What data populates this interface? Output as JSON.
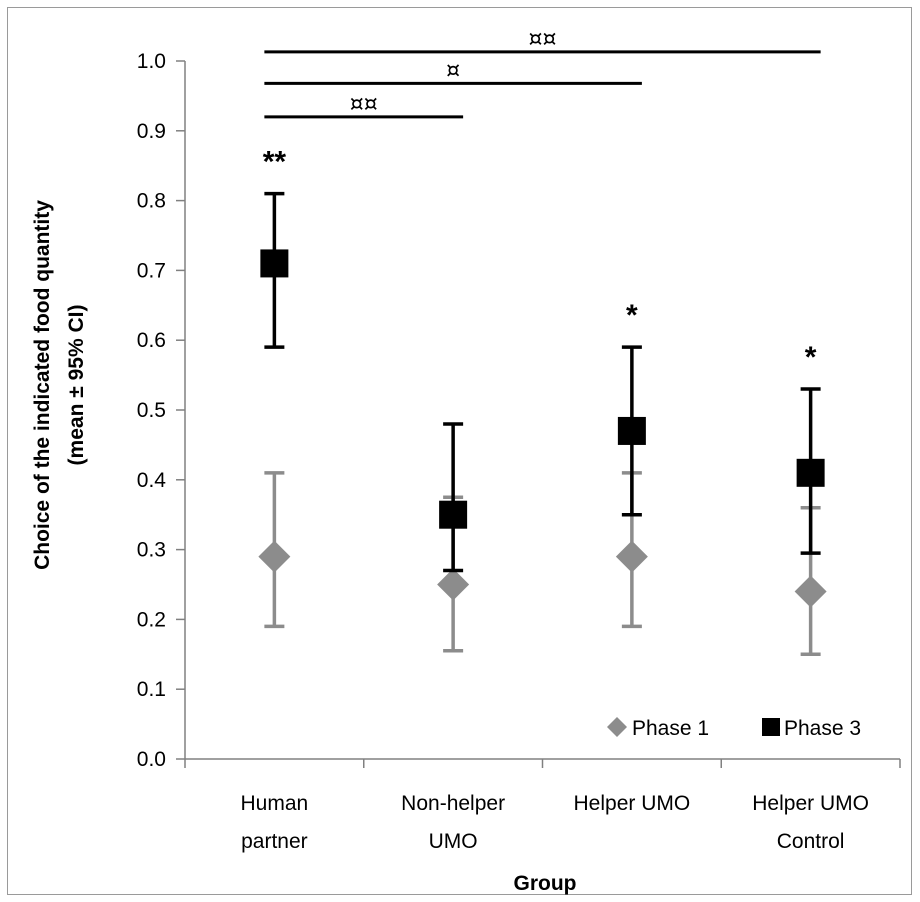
{
  "chart_data": {
    "type": "scatter",
    "xlabel": "Group",
    "ylabel": "Choice of the indicated food quantity",
    "ylabel_line2": "(mean ± 95% CI)",
    "ylim": [
      0.0,
      1.0
    ],
    "yticks": [
      "0.0",
      "0.1",
      "0.2",
      "0.3",
      "0.4",
      "0.5",
      "0.6",
      "0.7",
      "0.8",
      "0.9",
      "1.0"
    ],
    "categories": [
      {
        "line1": "Human",
        "line2": "partner"
      },
      {
        "line1": "Non-helper",
        "line2": "UMO"
      },
      {
        "line1": "Helper UMO",
        "line2": ""
      },
      {
        "line1": "Helper UMO",
        "line2": "Control"
      }
    ],
    "series": [
      {
        "name": "Phase 1",
        "marker": "diamond",
        "color": "#8c8c8c",
        "values": [
          0.29,
          0.25,
          0.29,
          0.24
        ],
        "ci_low": [
          0.19,
          0.155,
          0.19,
          0.15
        ],
        "ci_high": [
          0.41,
          0.375,
          0.41,
          0.36
        ]
      },
      {
        "name": "Phase 3",
        "marker": "square",
        "color": "#000000",
        "values": [
          0.71,
          0.35,
          0.47,
          0.41
        ],
        "ci_low": [
          0.59,
          0.27,
          0.35,
          0.295
        ],
        "ci_high": [
          0.81,
          0.48,
          0.59,
          0.53
        ]
      }
    ],
    "significance": [
      "**",
      "",
      "*",
      "*"
    ],
    "brackets": [
      {
        "from": 0,
        "to": 1,
        "label": "¤¤",
        "level": 0.92
      },
      {
        "from": 0,
        "to": 2,
        "label": "¤",
        "level": 0.968
      },
      {
        "from": 0,
        "to": 3,
        "label": "¤¤",
        "level": 1.013
      }
    ],
    "legend_position": "bottom-right",
    "grid": false
  }
}
